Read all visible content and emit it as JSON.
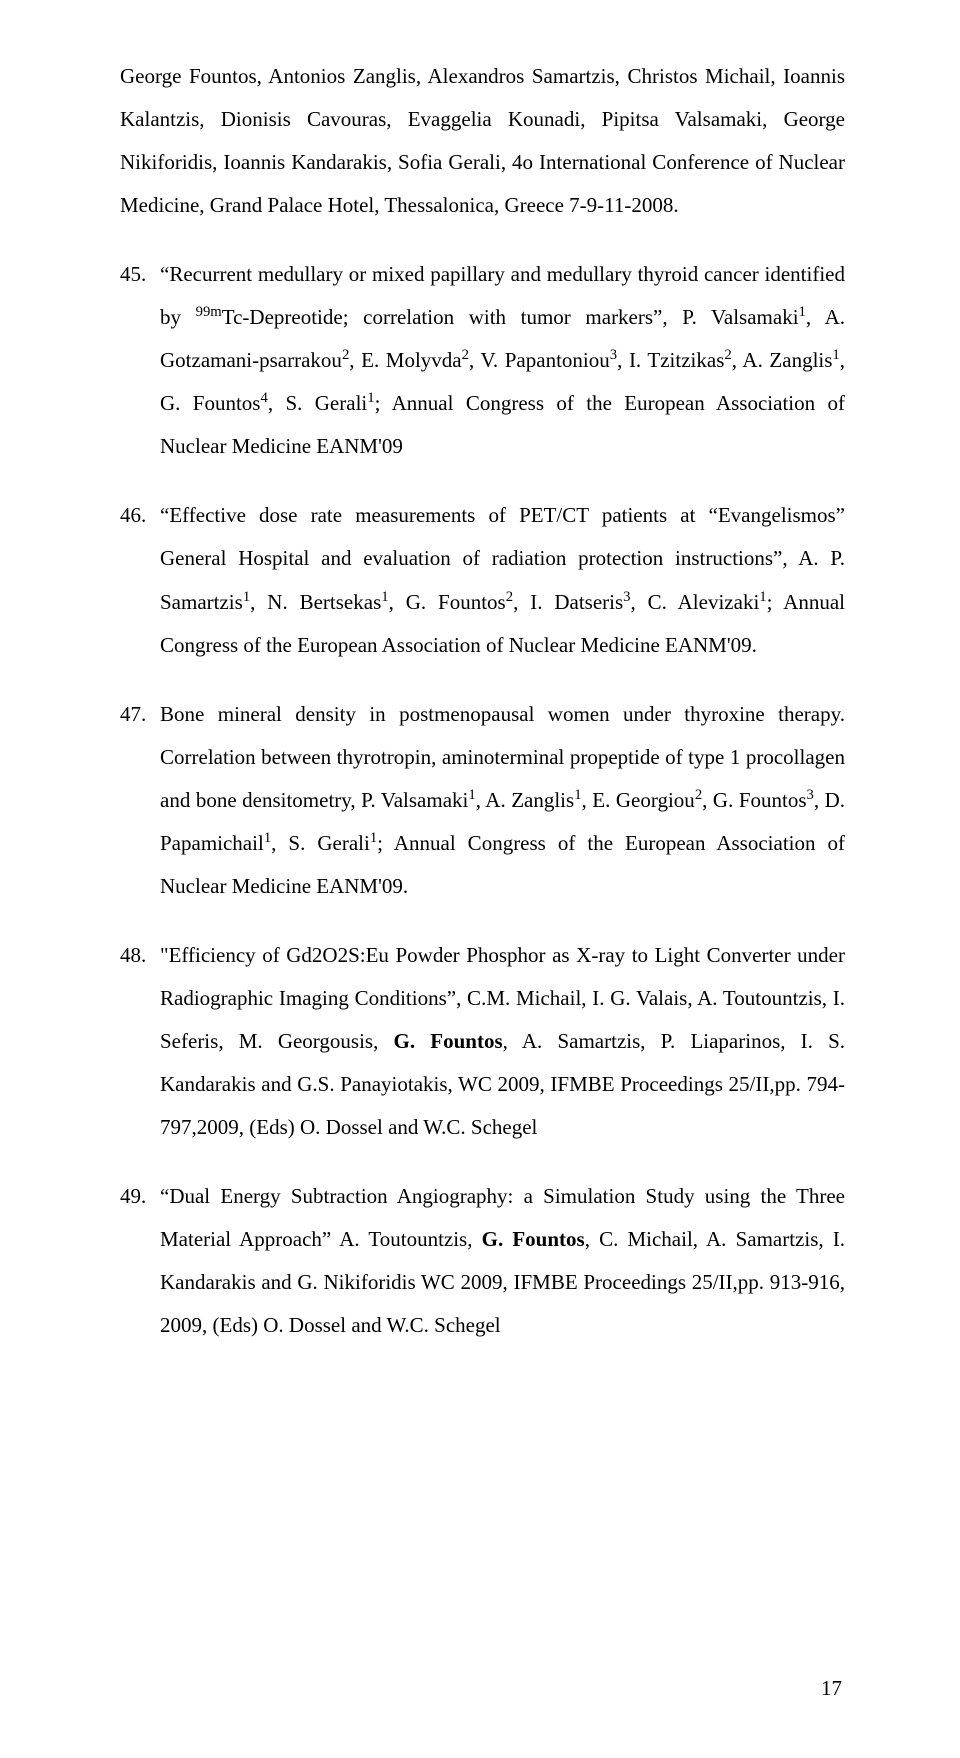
{
  "cont_paragraph": {
    "text_html": "George Fountos, Antonios Zanglis, Alexandros Samartzis, Christos Michail, Ioannis Kalantzis, Dionisis Cavouras, Evaggelia Kounadi, Pipitsa Valsamaki, George Nikiforidis, Ioannis Kandarakis, Sofia Gerali, 4o International Conference of Nuclear Medicine, Grand Palace Hotel, Thessalonica, Greece 7-9-11-2008."
  },
  "items": [
    {
      "n": "45.",
      "text_html": "“Recurrent medullary or mixed papillary and medullary thyroid cancer identified by <sup>99m</sup>Tc-Depreotide; correlation with tumor markers”, P. Valsamaki<sup>1</sup>, A. Gotzamani-psarrakou<sup>2</sup>, E. Molyvda<sup>2</sup>, V. Papantoniou<sup>3</sup>, I. Tzitzikas<sup>2</sup>, A. Zanglis<sup>1</sup>, G. Fountos<sup>4</sup>, S. Gerali<sup>1</sup>; Annual Congress of the European Association of Nuclear Medicine EANM'09"
    },
    {
      "n": "46.",
      "text_html": "“Effective dose rate measurements of PET/CT patients at “Evangelismos” General Hospital and evaluation of radiation protection instructions”, A. P. Samartzis<sup>1</sup>, N. Bertsekas<sup>1</sup>, G. Fountos<sup>2</sup>, I. Datseris<sup>3</sup>, C. Alevizaki<sup>1</sup>; Annual Congress of the European Association of Nuclear Medicine EANM'09."
    },
    {
      "n": "47.",
      "text_html": "Bone mineral density in postmenopausal women under thyroxine therapy. Correlation between thyrotropin, aminoterminal propeptide of type 1 procollagen and bone densitometry, P. Valsamaki<sup>1</sup>, A. Zanglis<sup>1</sup>, E. Georgiou<sup>2</sup>, G. Fountos<sup>3</sup>, D. Papamichail<sup>1</sup>, S. Gerali<sup>1</sup>; Annual Congress of the European Association of Nuclear Medicine EANM'09."
    },
    {
      "n": "48.",
      "text_html": "\"Efficiency of Gd2O2S:Eu Powder Phosphor as X-ray to Light Converter under Radiographic Imaging Conditions”, C.M. Michail, I. G. Valais, A. Toutountzis, I. Seferis, M. Georgousis, <b>G. Fountos</b>, A. Samartzis, P. Liaparinos, I. S. Kandarakis and G.S. Panayiotakis, WC 2009, IFMBE Proceedings 25/II,pp. 794-797,2009, (Eds) O. Dossel and W.C. Schegel"
    },
    {
      "n": "49.",
      "text_html": "“Dual Energy Subtraction Angiography: a Simulation Study using the Three Material Approach” A. Toutountzis, <b>G. Fountos</b>, C. Michail, A. Samartzis, I. Kandarakis and G. Nikiforidis WC 2009, IFMBE Proceedings 25/II,pp. 913-916, 2009, (Eds) O. Dossel and W.C. Schegel"
    }
  ],
  "page_number": "17"
}
